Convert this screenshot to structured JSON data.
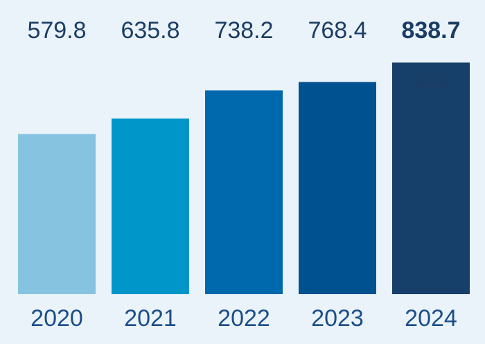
{
  "chart_data": {
    "type": "bar",
    "categories": [
      "2020",
      "2021",
      "2022",
      "2023",
      "2024"
    ],
    "values": [
      579.8,
      635.8,
      738.2,
      768.4,
      838.7
    ],
    "value_labels": [
      "579.8",
      "635.8",
      "738.2",
      "768.4",
      "838.7"
    ],
    "highlight_index": 4,
    "highlight_marker": "up-triangle-outline-icon",
    "colors": [
      "#86c3e1",
      "#0096c9",
      "#0068ad",
      "#00518f",
      "#163f6a"
    ],
    "label_color": "#1b3d63",
    "category_color": "#1b4e88",
    "title": "",
    "xlabel": "",
    "ylabel": "",
    "ylim": [
      0,
      940
    ],
    "grid": false,
    "legend": "none"
  }
}
